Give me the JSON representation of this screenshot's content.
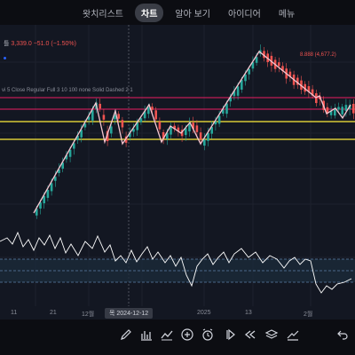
{
  "nav": {
    "tabs": [
      {
        "label": "왓치리스트",
        "active": false
      },
      {
        "label": "차트",
        "active": true
      },
      {
        "label": "알아 보기",
        "active": false
      },
      {
        "label": "아이디어",
        "active": false
      },
      {
        "label": "메뉴",
        "active": false
      }
    ]
  },
  "chart": {
    "symbol_prefix": "틀",
    "price_readout": "3,339.0 −51.0 (−1.50%)",
    "indicator_label": "vi 5 Close Regular Full 3 10 100 none Solid Dashed 2 1",
    "right_readout": "8.888 (4,677.2)",
    "crosshair_date": "목 2024-12-12",
    "x_ticks": [
      "11",
      "21",
      "12월",
      "2025",
      "13",
      "2월"
    ],
    "colors": {
      "up": "#26a69a",
      "down": "#ef5350",
      "zigzag": "#f5c6d0",
      "resistance": "#e91e63",
      "support": "#ffeb3b",
      "oscillator": "#ffffff",
      "background": "#131722"
    }
  },
  "toolbar": {
    "icons": [
      "pencil-icon",
      "bar-chart-icon",
      "indicators-icon",
      "add-icon",
      "alarm-icon",
      "replay-icon",
      "rewind-icon",
      "layers-icon",
      "trend-icon",
      "undo-icon"
    ]
  }
}
